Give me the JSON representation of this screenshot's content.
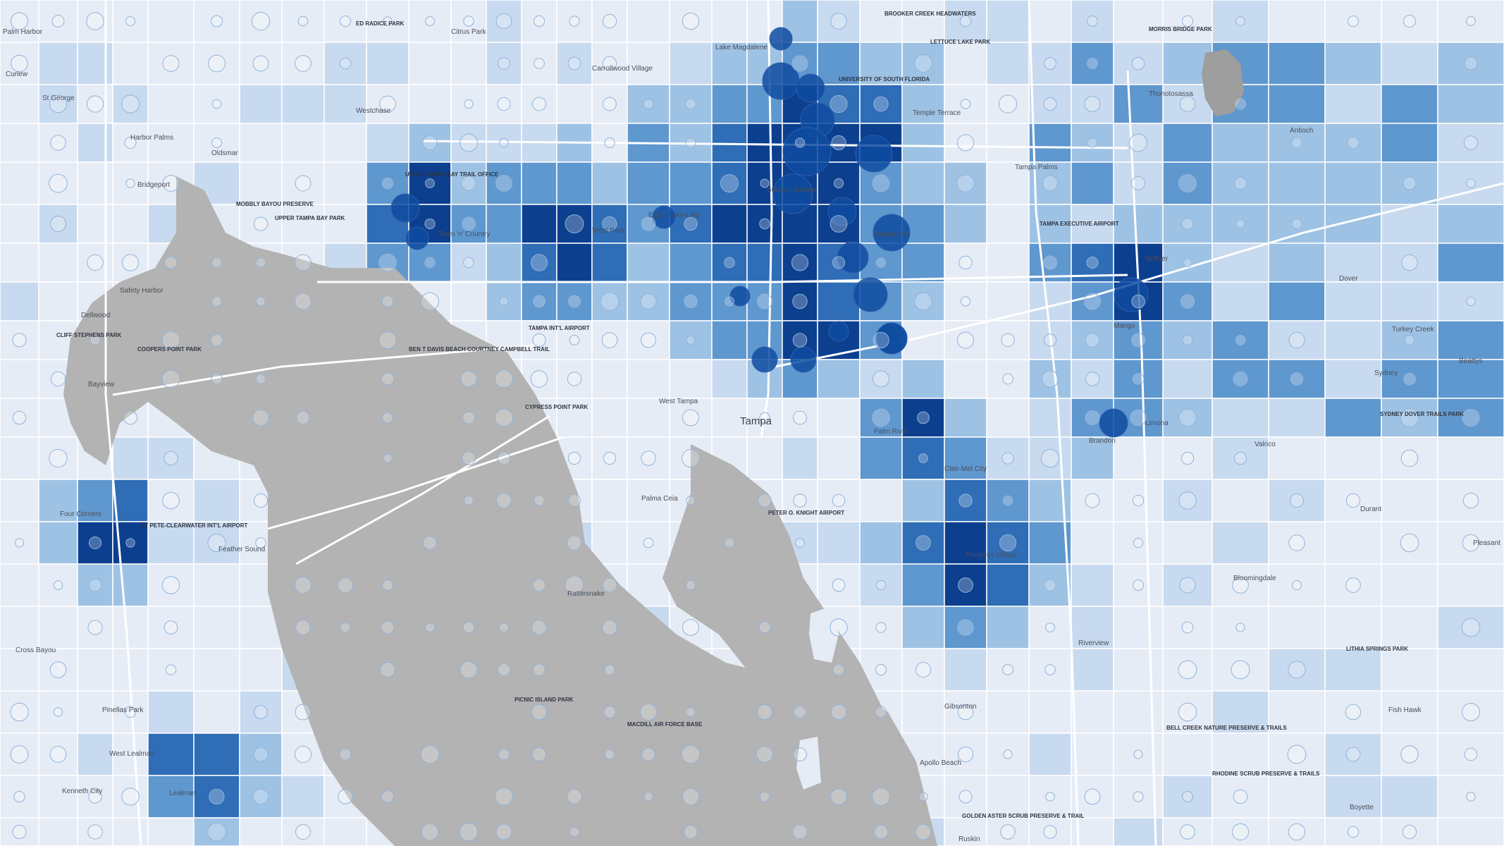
{
  "colors": {
    "background": "#e8ecf3",
    "water": "#b3b3b3",
    "tract_1": "#e6ecf6",
    "tract_2": "#c8daef",
    "tract_3": "#9ec2e4",
    "tract_4": "#5f97cf",
    "tract_5": "#2f6db6",
    "tract_6": "#0d3f8f",
    "tract_border": "#ffffff",
    "bubble_fill": "#0e4ba0",
    "road": "#ffffff",
    "text": "#4a4f5a"
  },
  "map": {
    "labels": [
      {
        "name": "place-palm-harbor",
        "text": "Palm Harbor",
        "cls": "lbl-md"
      },
      {
        "name": "place-curlew",
        "text": "Curlew",
        "cls": "lbl-md"
      },
      {
        "name": "place-st-george",
        "text": "St George",
        "cls": "lbl-md"
      },
      {
        "name": "place-westchase",
        "text": "Westchase",
        "cls": "lbl-md"
      },
      {
        "name": "place-harbor-palms",
        "text": "Harbor Palms",
        "cls": "lbl-md"
      },
      {
        "name": "place-oldsmar",
        "text": "Oldsmar",
        "cls": "lbl-md"
      },
      {
        "name": "place-bridgeport",
        "text": "Bridgeport",
        "cls": "lbl-md"
      },
      {
        "name": "place-citrus-park",
        "text": "Citrus Park",
        "cls": "lbl-md"
      },
      {
        "name": "place-carrollwood-village",
        "text": "Carrollwood Village",
        "cls": "lbl-md"
      },
      {
        "name": "place-lake-magdalene",
        "text": "Lake Magdalene",
        "cls": "lbl-md"
      },
      {
        "name": "place-temple-terrace",
        "text": "Temple Terrace",
        "cls": "lbl-md"
      },
      {
        "name": "place-town-n-country",
        "text": "Town 'n' Country",
        "cls": "lbl-md"
      },
      {
        "name": "place-egypt-lake-leto",
        "text": "Egypt Lake-Leto",
        "cls": "lbl-md"
      },
      {
        "name": "place-west-park",
        "text": "West Park",
        "cls": "lbl-md"
      },
      {
        "name": "place-safety-harbor",
        "text": "Safety Harbor",
        "cls": "lbl-md"
      },
      {
        "name": "place-dellwood",
        "text": "Dellwood",
        "cls": "lbl-md"
      },
      {
        "name": "place-bayview",
        "text": "Bayview",
        "cls": "lbl-md"
      },
      {
        "name": "place-west-tampa",
        "text": "West Tampa",
        "cls": "lbl-md"
      },
      {
        "name": "place-tampa",
        "text": "Tampa",
        "cls": "lbl-city"
      },
      {
        "name": "place-palm-river",
        "text": "Palm River",
        "cls": "lbl-md"
      },
      {
        "name": "place-clair-mel-city",
        "text": "Clair-Mel City",
        "cls": "lbl-md"
      },
      {
        "name": "place-brandon",
        "text": "Brandon",
        "cls": "lbl-md"
      },
      {
        "name": "place-limona",
        "text": "Limona",
        "cls": "lbl-md"
      },
      {
        "name": "place-valrico",
        "text": "Valrico",
        "cls": "lbl-md"
      },
      {
        "name": "place-seffner",
        "text": "Seffner",
        "cls": "lbl-md"
      },
      {
        "name": "place-dover",
        "text": "Dover",
        "cls": "lbl-md"
      },
      {
        "name": "place-turkey-creek",
        "text": "Turkey Creek",
        "cls": "lbl-md"
      },
      {
        "name": "place-beattys",
        "text": "Beattys",
        "cls": "lbl-md"
      },
      {
        "name": "place-sydney",
        "text": "Sydney",
        "cls": "lbl-md"
      },
      {
        "name": "place-antioch",
        "text": "Antioch",
        "cls": "lbl-md"
      },
      {
        "name": "place-mango",
        "text": "Mango",
        "cls": "lbl-md"
      },
      {
        "name": "place-durant",
        "text": "Durant",
        "cls": "lbl-md"
      },
      {
        "name": "place-pleasant",
        "text": "Pleasant",
        "cls": "lbl-md"
      },
      {
        "name": "place-bloomingdale",
        "text": "Bloomingdale",
        "cls": "lbl-md"
      },
      {
        "name": "place-fish-hawk",
        "text": "Fish Hawk",
        "cls": "lbl-md"
      },
      {
        "name": "place-boyette",
        "text": "Boyette",
        "cls": "lbl-md"
      },
      {
        "name": "place-riverview",
        "text": "Riverview",
        "cls": "lbl-md"
      },
      {
        "name": "place-progress-village",
        "text": "Progress Village",
        "cls": "lbl-md"
      },
      {
        "name": "place-palma-ceia",
        "text": "Palma Ceia",
        "cls": "lbl-md"
      },
      {
        "name": "place-rattlesnake",
        "text": "Rattlesnake",
        "cls": "lbl-md"
      },
      {
        "name": "place-four-corners",
        "text": "Four Corners",
        "cls": "lbl-md"
      },
      {
        "name": "place-feather-sound",
        "text": "Feather Sound",
        "cls": "lbl-md"
      },
      {
        "name": "place-cross-bayou",
        "text": "Cross Bayou",
        "cls": "lbl-md"
      },
      {
        "name": "place-pinellas-park",
        "text": "Pinellas Park",
        "cls": "lbl-md"
      },
      {
        "name": "place-kenneth-city",
        "text": "Kenneth City",
        "cls": "lbl-md"
      },
      {
        "name": "place-west-lealman",
        "text": "West Lealman",
        "cls": "lbl-md"
      },
      {
        "name": "place-lealman",
        "text": "Lealman",
        "cls": "lbl-md"
      },
      {
        "name": "place-gibsonton",
        "text": "Gibsonton",
        "cls": "lbl-md"
      },
      {
        "name": "place-apollo-beach",
        "text": "Apollo Beach",
        "cls": "lbl-md"
      },
      {
        "name": "place-ruskin",
        "text": "Ruskin",
        "cls": "lbl-md"
      },
      {
        "name": "place-thonotosassa",
        "text": "Thonotosassa",
        "cls": "lbl-md"
      },
      {
        "name": "place-tampa-palms",
        "text": "Tampa Palms",
        "cls": "lbl-md"
      },
      {
        "name": "place-sulphur-springs",
        "text": "Sulphur Springs",
        "cls": "lbl-md"
      },
      {
        "name": "place-mango-city",
        "text": "Mango City",
        "cls": "lbl-md"
      },
      {
        "name": "poi-usf",
        "text": "UNIVERSITY OF SOUTH FLORIDA",
        "cls": "lbl-sm"
      },
      {
        "name": "poi-tampa-intl-airport",
        "text": "TAMPA INT'L AIRPORT",
        "cls": "lbl-sm"
      },
      {
        "name": "poi-macdill",
        "text": "MACDILL AIR FORCE BASE",
        "cls": "lbl-sm"
      },
      {
        "name": "poi-peter-o-knight",
        "text": "PETER O. KNIGHT AIRPORT",
        "cls": "lbl-sm"
      },
      {
        "name": "poi-st-pete-clearwater",
        "text": "ST PETE-CLEARWATER INT'L AIRPORT",
        "cls": "lbl-sm"
      },
      {
        "name": "poi-upper-tampa-bay-park",
        "text": "UPPER TAMPA BAY PARK",
        "cls": "lbl-sm"
      },
      {
        "name": "poi-mobbly-bayou",
        "text": "MOBBLY BAYOU PRESERVE",
        "cls": "lbl-sm"
      },
      {
        "name": "poi-ed-radice",
        "text": "ED RADICE PARK",
        "cls": "lbl-sm"
      },
      {
        "name": "poi-lettuce-lake",
        "text": "LETTUCE LAKE PARK",
        "cls": "lbl-sm"
      },
      {
        "name": "poi-morris-bridge",
        "text": "MORRIS BRIDGE PARK",
        "cls": "lbl-sm"
      },
      {
        "name": "poi-cypress-point",
        "text": "CYPRESS POINT PARK",
        "cls": "lbl-sm"
      },
      {
        "name": "poi-picnic-island",
        "text": "PICNIC ISLAND PARK",
        "cls": "lbl-sm"
      },
      {
        "name": "poi-lithia-springs",
        "text": "LITHIA SPRINGS PARK",
        "cls": "lbl-sm"
      },
      {
        "name": "poi-bell-creek",
        "text": "BELL CREEK NATURE PRESERVE & TRAILS",
        "cls": "lbl-sm"
      },
      {
        "name": "poi-golden-aster",
        "text": "GOLDEN ASTER SCRUB PRESERVE & TRAIL",
        "cls": "lbl-sm"
      },
      {
        "name": "poi-sydney-dover",
        "text": "SYDNEY DOVER TRAILS PARK",
        "cls": "lbl-sm"
      },
      {
        "name": "poi-tampa-exec-airport",
        "text": "TAMPA EXECUTIVE AIRPORT",
        "cls": "lbl-sm"
      },
      {
        "name": "poi-cliff-stephens",
        "text": "CLIFF STEPHENS PARK",
        "cls": "lbl-sm"
      },
      {
        "name": "poi-coopers-point",
        "text": "COOPERS POINT PARK",
        "cls": "lbl-sm"
      },
      {
        "name": "poi-ben-t-davis",
        "text": "BEN T DAVIS BEACH COURTNEY CAMPBELL TRAIL",
        "cls": "lbl-sm"
      },
      {
        "name": "poi-upper-tampa-bay-trail",
        "text": "UPPER TAMPA BAY TRAIL OFFICE",
        "cls": "lbl-sm"
      },
      {
        "name": "poi-rhodine-scrub",
        "text": "RHODINE SCRUB PRESERVE & TRAILS",
        "cls": "lbl-sm"
      },
      {
        "name": "poi-brooker-creek",
        "text": "BROOKER CREEK HEADWATERS",
        "cls": "lbl-sm"
      }
    ]
  }
}
